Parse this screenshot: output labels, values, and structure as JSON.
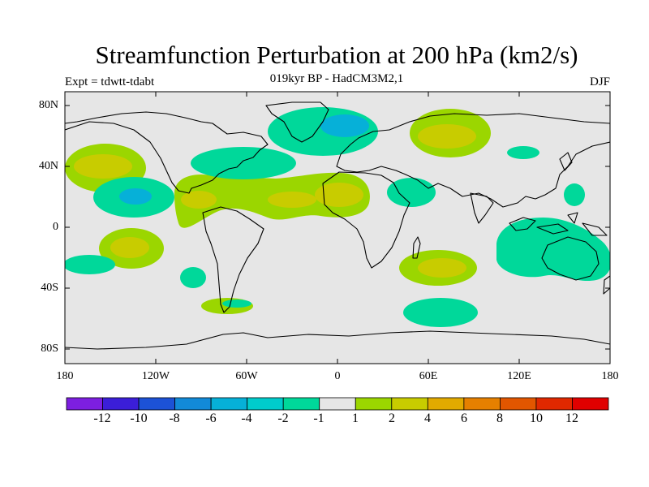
{
  "title": "Streamfunction Perturbation at 200 hPa (km2/s)",
  "subtitle": "019kyr BP - HadCM3M2,1",
  "left_label": "Expt = tdwtt-tdabt",
  "right_label": "DJF",
  "map": {
    "lat_ticks": [
      "80N",
      "40N",
      "0",
      "40S",
      "80S"
    ],
    "lon_ticks": [
      "180",
      "120W",
      "60W",
      "0",
      "60E",
      "120E",
      "180"
    ],
    "ocean_color": "#e6e6e6"
  },
  "colorbar": {
    "labels": [
      "-12",
      "-10",
      "-8",
      "-6",
      "-4",
      "-2",
      "-1",
      "1",
      "2",
      "4",
      "6",
      "8",
      "10",
      "12"
    ],
    "colors": [
      "#7d1fe0",
      "#3b1ed8",
      "#1c52d6",
      "#128ad8",
      "#06b0d8",
      "#00cccc",
      "#00d89a",
      "#e6e6e6",
      "#9bd600",
      "#c8cc00",
      "#e2aa00",
      "#e68000",
      "#e25600",
      "#e02800",
      "#e00000"
    ]
  }
}
